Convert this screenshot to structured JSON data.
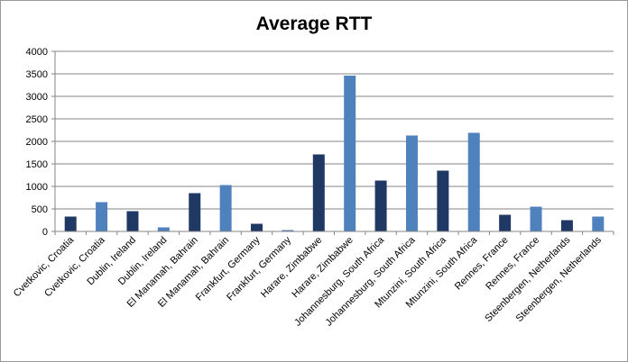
{
  "chart_data": {
    "type": "bar",
    "title": "Average RTT",
    "xlabel": "",
    "ylabel": "",
    "ylim": [
      0,
      4000
    ],
    "yticks": [
      0,
      500,
      1000,
      1500,
      2000,
      2500,
      3000,
      3500,
      4000
    ],
    "grid": true,
    "legend": "none",
    "colors": {
      "dark": "#1f3864",
      "light": "#4f81bd"
    },
    "categories": [
      "Cvetkovic, Croatia",
      "Cvetkovic, Croatia",
      "Dublin, Ireland",
      "Dublin, Ireland",
      "El Manamah,  Bahrain",
      "El Manamah,  Bahrain",
      "Frankfurt, Germany",
      "Frankfurt, Germany",
      "Harare, Zimbabwe",
      "Harare, Zimbabwe",
      "Johannesburg, South Africa",
      "Johannesburg, South Africa",
      "Mtunzini, South Africa",
      "Mtunzini, South Africa",
      "Rennes, France",
      "Rennes, France",
      "Steenbergen, Netherlands",
      "Steenbergen, Netherlands"
    ],
    "values": [
      330,
      650,
      450,
      90,
      850,
      1030,
      170,
      30,
      1710,
      3460,
      1130,
      2130,
      1350,
      2190,
      370,
      550,
      250,
      330
    ],
    "bar_colors": [
      "dark",
      "light",
      "dark",
      "light",
      "dark",
      "light",
      "dark",
      "light",
      "dark",
      "light",
      "dark",
      "light",
      "dark",
      "light",
      "dark",
      "light",
      "dark",
      "light"
    ]
  }
}
